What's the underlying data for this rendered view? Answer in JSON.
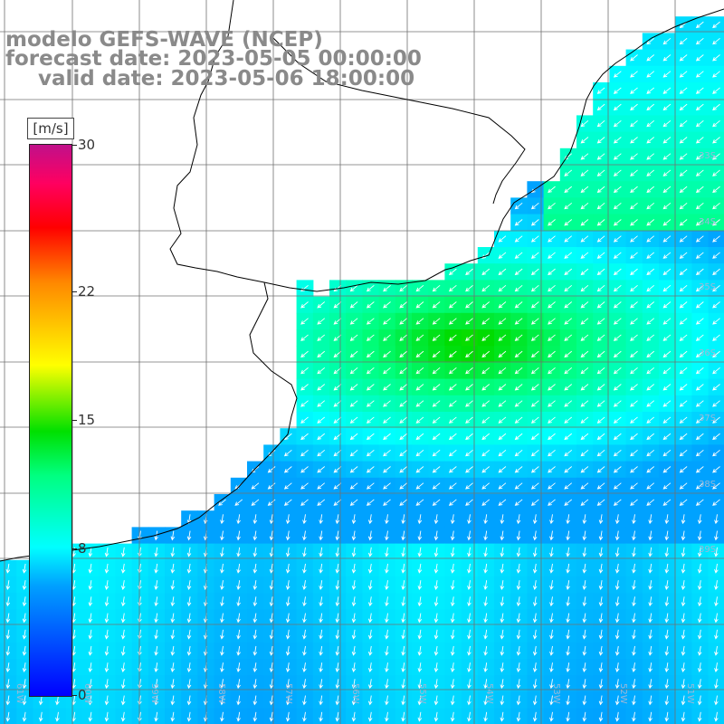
{
  "title": {
    "line1": "modelo GEFS-WAVE (NCEP)",
    "line2": "forecast date: 2023-05-05 00:00:00",
    "line3": "valid date: 2023-05-06 18:00:00"
  },
  "colorbar": {
    "unit": "[m/s]",
    "ticks": [
      "30",
      "22",
      "15",
      "8",
      "0"
    ],
    "tick_values": [
      30,
      22,
      15,
      8,
      0
    ],
    "min": 0,
    "max": 30
  },
  "map": {
    "lon_labels": [
      "61W",
      "60W",
      "59W",
      "58W",
      "57W",
      "56W",
      "55W",
      "54W",
      "53W",
      "52W",
      "51W"
    ],
    "lat_labels": [
      "33S",
      "34S",
      "35S",
      "36S",
      "37S",
      "38S",
      "39S"
    ],
    "colors": {
      "land": "#ffffff",
      "coast": "#000000",
      "grid": "#707070",
      "arrows": "#ffffff"
    }
  }
}
